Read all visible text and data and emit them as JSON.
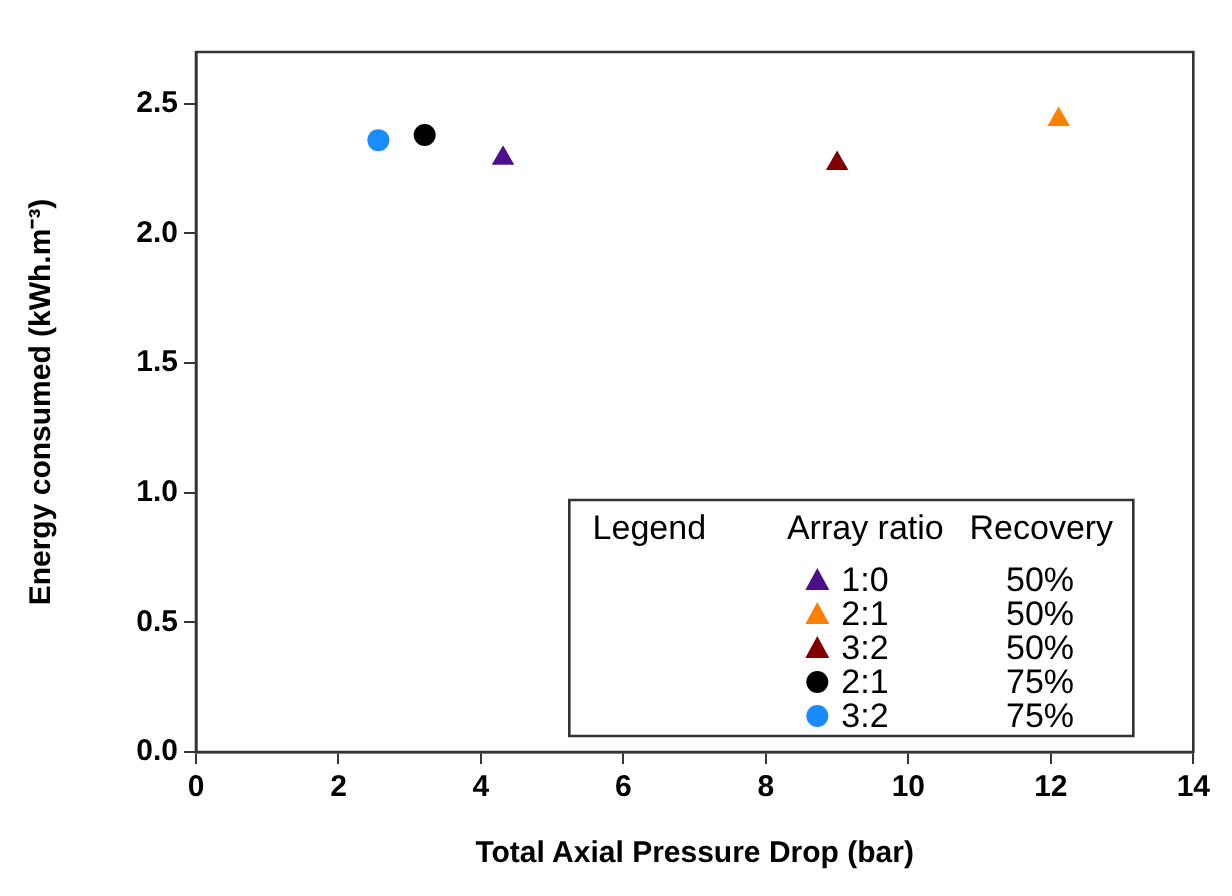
{
  "chart_data": {
    "type": "scatter",
    "xlabel": "Total Axial Pressure Drop (bar)",
    "ylabel": "Energy consumed (kWh.m⁻³)",
    "legend_title": "Legend",
    "annotations": [
      "Array ratio",
      "Recovery"
    ],
    "xlim": [
      0,
      14
    ],
    "xticks": [
      0,
      2,
      4,
      6,
      8,
      10,
      12,
      14
    ],
    "ylim": [
      0,
      2.7
    ],
    "yticks": [
      {
        "value": 0,
        "label": "0.0"
      },
      0.5,
      {
        "value": 1,
        "label": "1.0"
      },
      1.5,
      {
        "value": 2,
        "label": "2.0"
      },
      2.5
    ],
    "legend": "bottom right",
    "grid": false,
    "series": [
      {
        "name": "1:0 50%",
        "color": "#4b0f8c",
        "marker": "triangle",
        "x": [
          4.31
        ],
        "values": [
          2.29
        ]
      },
      {
        "name": "2:1 50%",
        "color": "#ff8000",
        "marker": "triangle",
        "x": [
          12.11
        ],
        "values": [
          2.44
        ]
      },
      {
        "name": "3:2 50%",
        "color": "#800000",
        "marker": "triangle",
        "x": [
          9.0
        ],
        "values": [
          2.27
        ]
      },
      {
        "name": "2:1 75%",
        "color": "#000000",
        "marker": "circle",
        "x": [
          3.21
        ],
        "values": [
          2.38
        ]
      },
      {
        "name": "3:2 75%",
        "color": "#1a8cff",
        "marker": "circle",
        "x": [
          2.56
        ],
        "values": [
          2.36
        ]
      }
    ]
  }
}
